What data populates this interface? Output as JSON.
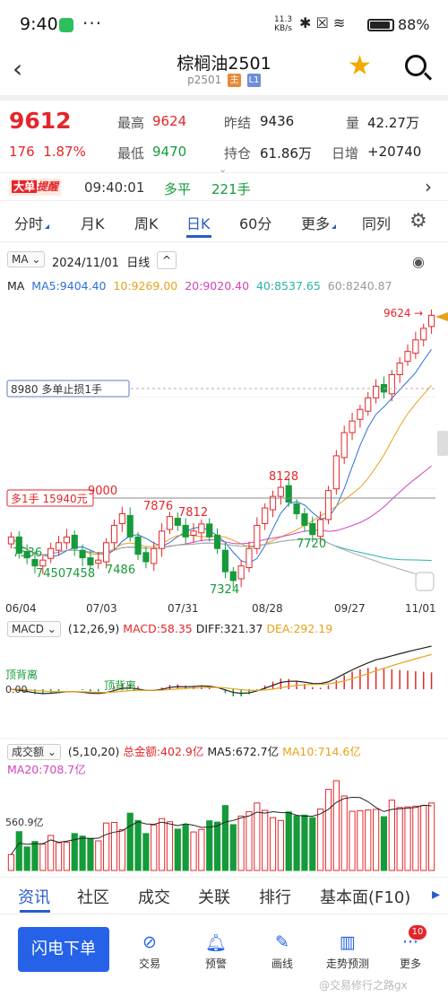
{
  "status": {
    "time": "9:40",
    "speed_value": "11.3",
    "speed_unit": "KB/s",
    "battery": "88%"
  },
  "header": {
    "title": "棕榈油2501",
    "code": "p2501",
    "tag_main": "主",
    "tag_l1": "L1"
  },
  "quote": {
    "price": "9612",
    "change": "176",
    "change_pct": "1.87%",
    "high_label": "最高",
    "high": "9624",
    "low_label": "最低",
    "low": "9470",
    "prev_label": "昨结",
    "prev": "9436",
    "hold_label": "持仓",
    "hold": "61.86万",
    "vol_label": "量",
    "vol": "42.27万",
    "daily_label": "日增",
    "daily": "+20740"
  },
  "alert": {
    "badge_a": "大单",
    "badge_b": "提醒",
    "time": "09:40:01",
    "type": "多平",
    "qty": "221手"
  },
  "tabs": [
    "分时",
    "月K",
    "周K",
    "日K",
    "60分",
    "更多",
    "同列"
  ],
  "ma_strip": {
    "selector": "MA",
    "date": "2024/11/01",
    "period": "日线",
    "caret": "^"
  },
  "ma_line": {
    "name": "MA",
    "ma5": "MA5:9404.40",
    "ma10": "10:9269.00",
    "ma20": "20:9020.40",
    "ma40": "40:8537.65",
    "ma60": "60:8240.87"
  },
  "colors": {
    "up": "#e4262b",
    "down": "#169b3a",
    "ma5": "#2f6fd6",
    "ma10": "#e8a21a",
    "ma20": "#d444b8",
    "ma40": "#2ab3a6",
    "ma60": "#aaaaaa",
    "accent": "#2a5cc7"
  },
  "kchart": {
    "stop_label": "8980  多单止损1手",
    "stop_icon": "①",
    "pos_label": "多1手  15940元",
    "high_mark": "9624",
    "extra_mark": "9000",
    "annotations": [
      "7536",
      "7450",
      "7458",
      "7486",
      "7876",
      "7812",
      "7324",
      "8128",
      "7720"
    ],
    "dates": [
      "06/04",
      "07/03",
      "07/31",
      "08/28",
      "09/27",
      "11/01"
    ]
  },
  "macd": {
    "selector": "MACD",
    "params": "(12,26,9)",
    "macd": "MACD:58.35",
    "diff": "DIFF:321.37",
    "dea": "DEA:292.19",
    "zero": "0.00",
    "div_a": "顶背离",
    "div_b": "顶背离"
  },
  "volume": {
    "selector": "成交额",
    "params": "(5,10,20)",
    "total": "总金额:402.9亿",
    "ma5": "MA5:672.7亿",
    "ma10": "MA10:714.6亿",
    "ma20": "MA20:708.7亿",
    "level": "560.9亿"
  },
  "info_tabs": [
    "资讯",
    "社区",
    "成交",
    "关联",
    "排行",
    "基本面(F10)"
  ],
  "bottom": {
    "fast_order": "闪电下单",
    "items": [
      "交易",
      "预警",
      "画线",
      "走势预测",
      "更多"
    ],
    "badge": "10",
    "watermark": "@交易修行之路gx"
  },
  "chart_data": {
    "type": "candlestick",
    "x_ticks": [
      "06/04",
      "07/03",
      "07/31",
      "08/28",
      "09/27",
      "11/01"
    ],
    "y_range": [
      7300,
      9700
    ],
    "close_series_approx": [
      7700,
      7560,
      7520,
      7450,
      7500,
      7600,
      7650,
      7700,
      7600,
      7520,
      7458,
      7500,
      7650,
      7800,
      7900,
      7700,
      7550,
      7486,
      7600,
      7750,
      7876,
      7800,
      7700,
      7750,
      7812,
      7700,
      7600,
      7400,
      7324,
      7450,
      7600,
      7800,
      7950,
      8050,
      8128,
      8000,
      7900,
      7800,
      7720,
      7850,
      8100,
      8400,
      8600,
      8700,
      8800,
      8900,
      9000,
      8950,
      9100,
      9200,
      9300,
      9400,
      9500,
      9612
    ]
  }
}
